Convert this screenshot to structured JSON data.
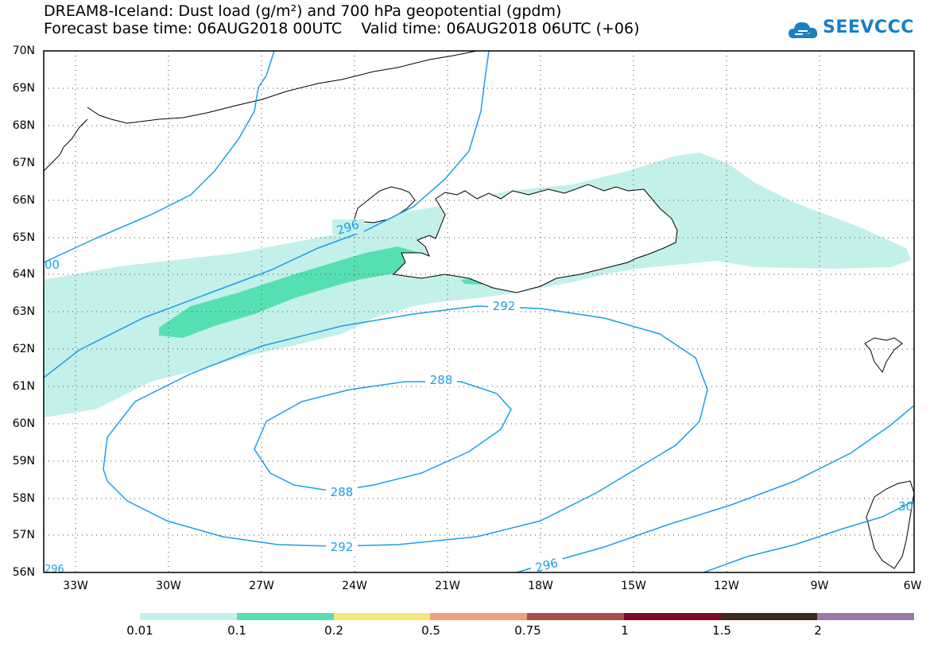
{
  "header": {
    "title_line1": "DREAM8-Iceland: Dust load (g/m²) and 700 hPa geopotential (gpdm)",
    "title_line2": "Forecast base time: 06AUG2018 00UTC    Valid time: 06AUG2018 06UTC (+06)",
    "logo_text": "SEEVCCC"
  },
  "map": {
    "lat_labels": [
      "70N",
      "69N",
      "68N",
      "67N",
      "66N",
      "65N",
      "64N",
      "63N",
      "62N",
      "61N",
      "60N",
      "59N",
      "58N",
      "57N",
      "56N"
    ],
    "lon_labels": [
      "33W",
      "30W",
      "27W",
      "24W",
      "21W",
      "18W",
      "15W",
      "12W",
      "9W",
      "6W"
    ],
    "contour_labels": {
      "c296_iceland": "296",
      "c292_upper": "292",
      "c288_top": "288",
      "c288_bottom": "288",
      "c292_lower": "292",
      "c296_bottom": "296",
      "c296_left_edge": "296",
      "c300_left": "00",
      "c300_right": "30"
    },
    "colors": {
      "dust_low": "#c4f0ea",
      "dust_mid": "#55e0b3",
      "contour": "#1a9fe8",
      "coast": "#000000"
    }
  },
  "legend": {
    "colors": [
      "#c4f0ea",
      "#55e0b3",
      "#f7e87a",
      "#eea07a",
      "#a8504a",
      "#7a0a2a",
      "#3e2a1a",
      "#9a7aa8"
    ],
    "labels": [
      "0.01",
      "0.1",
      "0.2",
      "0.5",
      "0.75",
      "1",
      "1.5",
      "2"
    ]
  }
}
